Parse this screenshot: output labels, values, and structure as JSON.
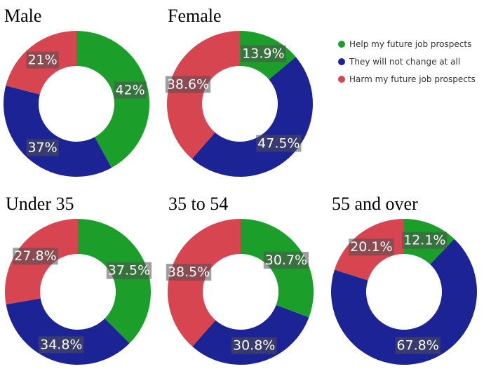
{
  "chart_data": {
    "type": "pie",
    "categories": [
      "Help my future job prospects",
      "They will not change at all",
      "Harm my future job prospects"
    ],
    "colors": [
      "#1b9e2a",
      "#1c2394",
      "#d64550"
    ],
    "legend_position": "top-right",
    "charts": [
      {
        "title": "Male",
        "values": [
          42,
          37,
          21
        ],
        "labels": [
          "42%",
          "37%",
          "21%"
        ]
      },
      {
        "title": "Female",
        "values": [
          13.9,
          47.5,
          38.6
        ],
        "labels": [
          "13.9%",
          "47.5%",
          "38.6%"
        ]
      },
      {
        "title": "Under 35",
        "values": [
          37.5,
          34.8,
          27.8
        ],
        "labels": [
          "37.5%",
          "34.8%",
          "27.8%"
        ]
      },
      {
        "title": "35 to 54",
        "values": [
          30.7,
          30.8,
          38.5
        ],
        "labels": [
          "30.7%",
          "30.8%",
          "38.5%"
        ]
      },
      {
        "title": "55 and over",
        "values": [
          12.1,
          67.8,
          20.1
        ],
        "labels": [
          "12.1%",
          "67.8%",
          "20.1%"
        ]
      }
    ]
  }
}
